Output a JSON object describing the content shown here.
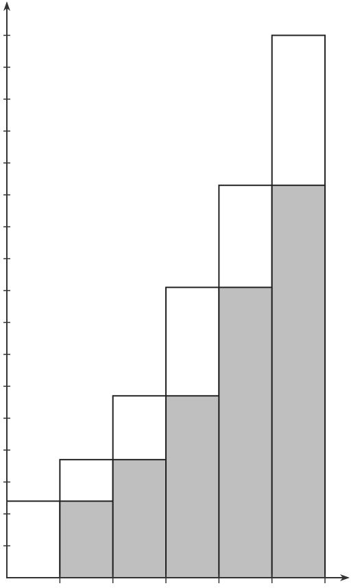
{
  "chart_data": {
    "type": "histogram",
    "bins": [
      0,
      1,
      2,
      3,
      4,
      5,
      6
    ],
    "series": [
      {
        "color": "#ffffff",
        "values": [
          2.4,
          3.7,
          5.7,
          9.1,
          12.3,
          17.0
        ]
      },
      {
        "color": "#bfbfbf",
        "values": [
          0,
          2.4,
          3.7,
          5.7,
          9.1,
          12.3
        ]
      }
    ],
    "xlim": [
      0,
      6.4
    ],
    "ylim": [
      0,
      18
    ],
    "xticks": [
      1,
      2,
      3,
      4,
      5,
      6
    ],
    "yticks": [
      1,
      2,
      3,
      4,
      5,
      6,
      7,
      8,
      9,
      10,
      11,
      12,
      13,
      14,
      15,
      16,
      17
    ]
  }
}
